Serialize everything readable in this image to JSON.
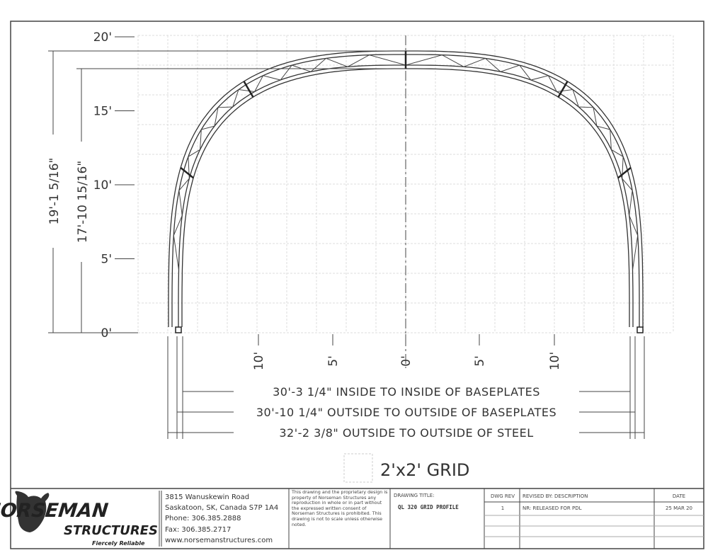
{
  "drawing": {
    "y_axis_labels": [
      "0'",
      "5'",
      "10'",
      "15'",
      "20'"
    ],
    "x_axis_labels": [
      "10'",
      "5'",
      "0'",
      "5'",
      "10'"
    ],
    "outer_height_dim": "19'-1 5/16\"",
    "inner_height_dim": "17'-10 15/16\"",
    "dim_inside_baseplates": "30'-3 1/4\" INSIDE TO INSIDE OF BASEPLATES",
    "dim_outside_baseplates": "30'-10 1/4\" OUTSIDE TO OUTSIDE OF BASEPLATES",
    "dim_outside_steel": "32'-2 3/8\" OUTSIDE TO OUTSIDE OF STEEL",
    "grid_legend": "2'x2' GRID"
  },
  "title_block": {
    "logo_name": "NORSEMAN",
    "logo_sub": "STRUCTURES",
    "logo_tagline": "Fiercely Reliable",
    "address1": "3815 Wanuskewin Road",
    "address2": "Saskatoon, SK, Canada S7P 1A4",
    "phone": "Phone: 306.385.2888",
    "fax": "Fax: 306.385.2717",
    "website": "www.norsemanstructures.com",
    "disclaimer": "This drawing and the proprietary design is property of Norseman Structures any reproduction in whole or in part without the expressed written consent of Norseman Structures is prohibited. This drawing is not to scale unless otherwise noted.",
    "drawing_title_label": "DRAWING TITLE:",
    "drawing_title": "QL 320 GRID PROFILE",
    "rev_header": "DWG REV",
    "desc_header": "REVISED BY: DESCRIPTION",
    "date_header": "DATE",
    "revisions": [
      {
        "rev": "1",
        "description": "NR: RELEASED FOR PDL",
        "date": "25 MAR 20"
      }
    ]
  }
}
